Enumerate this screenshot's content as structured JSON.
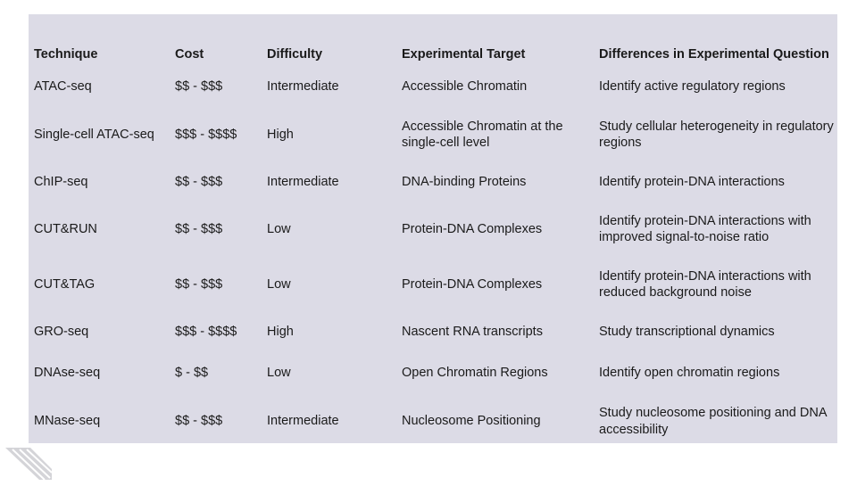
{
  "table": {
    "headers": [
      "Technique",
      "Cost",
      "Difficulty",
      "Experimental Target",
      "Differences in Experimental Question"
    ],
    "rows": [
      [
        "ATAC-seq",
        "$$ - $$$",
        "Intermediate",
        "Accessible Chromatin",
        "Identify active regulatory regions"
      ],
      [
        "Single-cell ATAC-seq",
        "$$$ - $$$$",
        "High",
        "Accessible Chromatin at the single-cell level",
        "Study cellular heterogeneity in regulatory regions"
      ],
      [
        "ChIP-seq",
        "$$ - $$$",
        "Intermediate",
        "DNA-binding Proteins",
        "Identify protein-DNA interactions"
      ],
      [
        "CUT&RUN",
        "$$ - $$$",
        "Low",
        "Protein-DNA Complexes",
        "Identify protein-DNA interactions with improved signal-to-noise ratio"
      ],
      [
        "CUT&TAG",
        "$$ - $$$",
        "Low",
        "Protein-DNA Complexes",
        "Identify protein-DNA interactions with reduced background noise"
      ],
      [
        "GRO-seq",
        "$$$ - $$$$",
        "High",
        "Nascent RNA transcripts",
        "Study transcriptional dynamics"
      ],
      [
        "DNAse-seq",
        "$ - $$",
        "Low",
        "Open Chromatin Regions",
        "Identify open chromatin regions"
      ],
      [
        "MNase-seq",
        "$$ - $$$",
        "Intermediate",
        "Nucleosome Positioning",
        "Study nucleosome positioning and DNA accessibility"
      ]
    ]
  },
  "colors": {
    "panel_background": "#dcdbe6",
    "text": "#1a1a1a",
    "logo": "#d4d4d8"
  },
  "icons": {
    "logo": "striped-chevron-logo-icon"
  }
}
